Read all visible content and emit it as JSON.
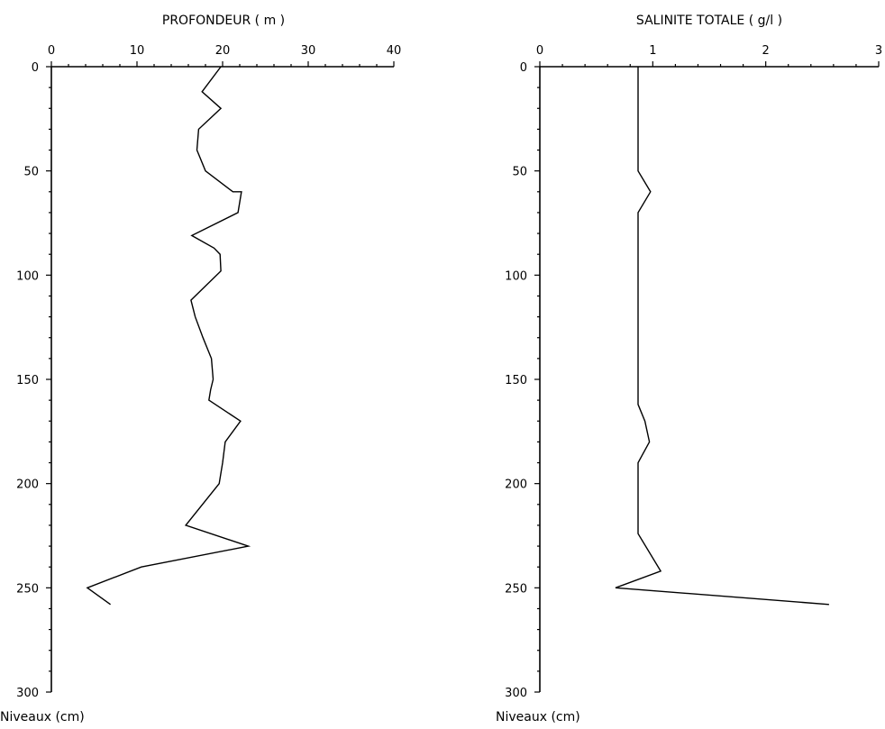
{
  "chart_data": [
    {
      "type": "line",
      "title": "PROFONDEUR ( m )",
      "ylabel": "Niveaux (cm)",
      "xlim": [
        0,
        40
      ],
      "ylim": [
        0,
        300
      ],
      "x_ticks": [
        0,
        10,
        20,
        30,
        40
      ],
      "y_ticks": [
        0,
        50,
        100,
        150,
        200,
        250,
        300
      ],
      "y_inverted": true,
      "series": [
        {
          "points": [
            {
              "x": 19.8,
              "y": 0
            },
            {
              "x": 17.6,
              "y": 12
            },
            {
              "x": 19.8,
              "y": 20
            },
            {
              "x": 17.2,
              "y": 30
            },
            {
              "x": 17.0,
              "y": 40
            },
            {
              "x": 18.0,
              "y": 50
            },
            {
              "x": 21.2,
              "y": 60
            },
            {
              "x": 22.2,
              "y": 60
            },
            {
              "x": 21.8,
              "y": 70
            },
            {
              "x": 16.4,
              "y": 81
            },
            {
              "x": 19.0,
              "y": 87
            },
            {
              "x": 19.7,
              "y": 90
            },
            {
              "x": 19.8,
              "y": 98
            },
            {
              "x": 16.3,
              "y": 112
            },
            {
              "x": 16.8,
              "y": 120
            },
            {
              "x": 17.7,
              "y": 130
            },
            {
              "x": 18.7,
              "y": 140
            },
            {
              "x": 18.9,
              "y": 150
            },
            {
              "x": 18.6,
              "y": 155
            },
            {
              "x": 18.4,
              "y": 160
            },
            {
              "x": 22.1,
              "y": 170
            },
            {
              "x": 20.3,
              "y": 180
            },
            {
              "x": 20.0,
              "y": 190
            },
            {
              "x": 19.6,
              "y": 200
            },
            {
              "x": 15.7,
              "y": 220
            },
            {
              "x": 23.0,
              "y": 230
            },
            {
              "x": 10.5,
              "y": 240
            },
            {
              "x": 4.2,
              "y": 250
            },
            {
              "x": 6.9,
              "y": 258
            }
          ]
        }
      ]
    },
    {
      "type": "line",
      "title": "SALINITE TOTALE ( g/l )",
      "ylabel": "Niveaux (cm)",
      "xlim": [
        0,
        3
      ],
      "ylim": [
        0,
        300
      ],
      "x_ticks": [
        0,
        1,
        2,
        3
      ],
      "y_ticks": [
        0,
        50,
        100,
        150,
        200,
        250,
        300
      ],
      "y_inverted": true,
      "series": [
        {
          "points": [
            {
              "x": 0.87,
              "y": 0
            },
            {
              "x": 0.87,
              "y": 50
            },
            {
              "x": 0.98,
              "y": 60
            },
            {
              "x": 0.87,
              "y": 70
            },
            {
              "x": 0.87,
              "y": 162
            },
            {
              "x": 0.93,
              "y": 170
            },
            {
              "x": 0.97,
              "y": 180
            },
            {
              "x": 0.87,
              "y": 190
            },
            {
              "x": 0.87,
              "y": 224
            },
            {
              "x": 1.07,
              "y": 242
            },
            {
              "x": 0.67,
              "y": 250
            },
            {
              "x": 2.56,
              "y": 258
            }
          ]
        }
      ]
    }
  ]
}
